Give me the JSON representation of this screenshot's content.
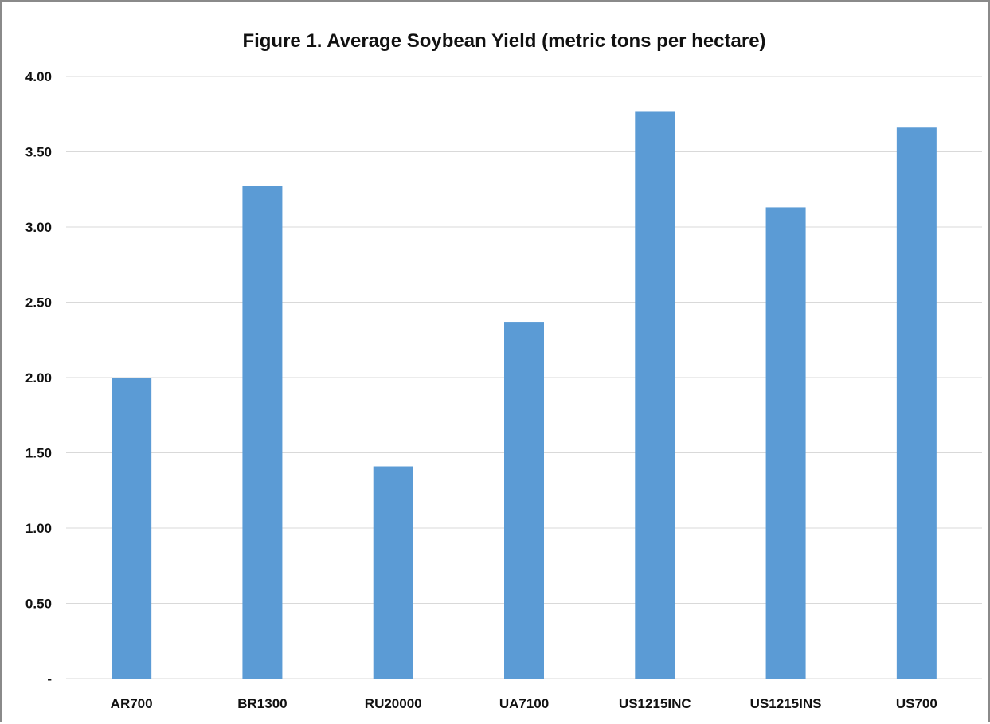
{
  "chart_data": {
    "type": "bar",
    "title": "Figure 1.  Average Soybean Yield (metric tons per hectare)",
    "xlabel": "",
    "ylabel": "",
    "categories": [
      "AR700",
      "BR1300",
      "RU20000",
      "UA7100",
      "US1215INC",
      "US1215INS",
      "US700"
    ],
    "values": [
      2.0,
      3.27,
      1.41,
      2.37,
      3.77,
      3.13,
      3.66
    ],
    "ylim": [
      0,
      4
    ],
    "yticks": [
      0,
      0.5,
      1.0,
      1.5,
      2.0,
      2.5,
      3.0,
      3.5,
      4.0
    ],
    "ytick_labels": [
      "-",
      "0.50",
      "1.00",
      "1.50",
      "2.00",
      "2.50",
      "3.00",
      "3.50",
      "4.00"
    ],
    "grid": true,
    "legend": "none",
    "bar_color": "#5b9bd5",
    "grid_color": "#d9d9d9"
  }
}
